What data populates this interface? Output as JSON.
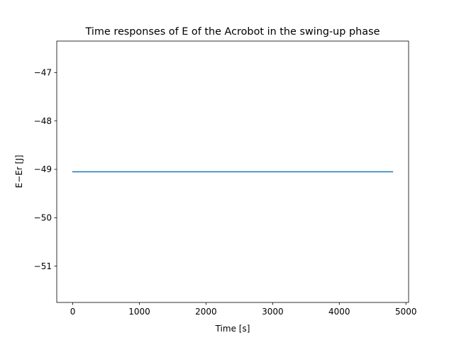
{
  "chart_data": {
    "type": "line",
    "title": "Time responses of E of the Acrobot in the swing-up phase",
    "xlabel": "Time [s]",
    "ylabel": "E−Er [J]",
    "xlim": [
      -240,
      5040
    ],
    "ylim": [
      -51.75,
      -46.35
    ],
    "xticks": [
      0,
      1000,
      2000,
      3000,
      4000,
      5000
    ],
    "xtick_labels": [
      "0",
      "1000",
      "2000",
      "3000",
      "4000",
      "5000"
    ],
    "yticks": [
      -51,
      -50,
      -49,
      -48,
      -47
    ],
    "ytick_labels": [
      "−51",
      "−50",
      "−49",
      "−48",
      "−47"
    ],
    "grid": false,
    "legend": "none",
    "series": [
      {
        "color": "#1f77b4",
        "x": [
          0,
          4800
        ],
        "y": [
          -49.05,
          -49.05
        ]
      }
    ]
  }
}
